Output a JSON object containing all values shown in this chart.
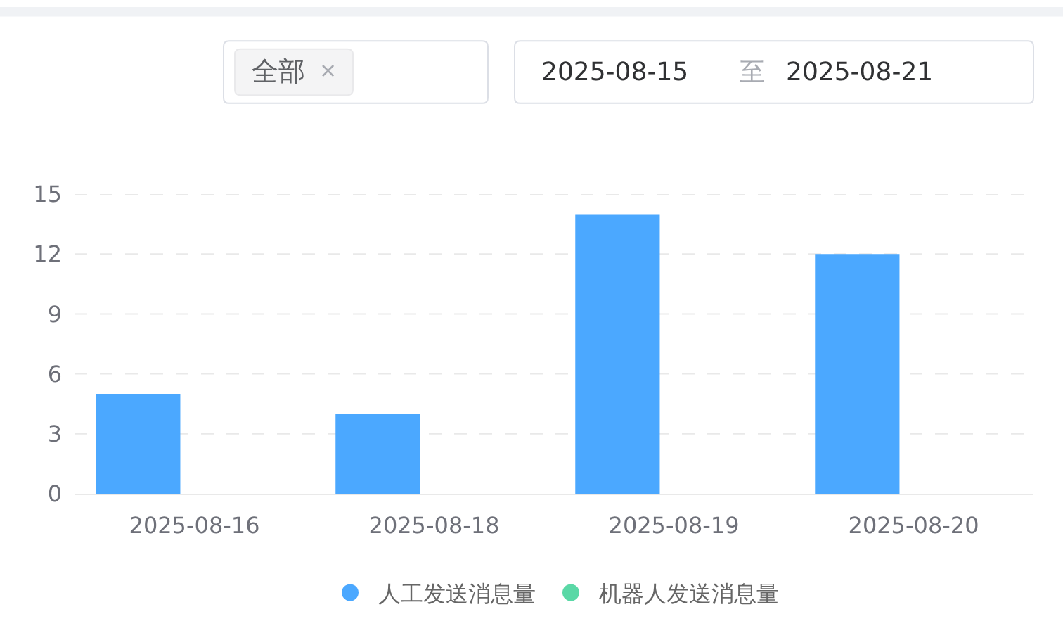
{
  "chart_data": {
    "type": "bar",
    "categories": [
      "2025-08-16",
      "2025-08-18",
      "2025-08-19",
      "2025-08-20"
    ],
    "series": [
      {
        "name": "人工发送消息量",
        "color": "#4ba8ff",
        "values": [
          5,
          4,
          14,
          12
        ]
      },
      {
        "name": "机器人发送消息量",
        "color": "#5ad8a6",
        "values": [
          0,
          0,
          0,
          0
        ]
      }
    ],
    "ylim": [
      0,
      15
    ],
    "yticks": [
      0,
      3,
      6,
      9,
      12,
      15
    ],
    "grid": "y",
    "legend": "bottom",
    "annotations": [
      "全部",
      "×",
      "2025-08-15",
      "至",
      "2025-08-21"
    ]
  }
}
